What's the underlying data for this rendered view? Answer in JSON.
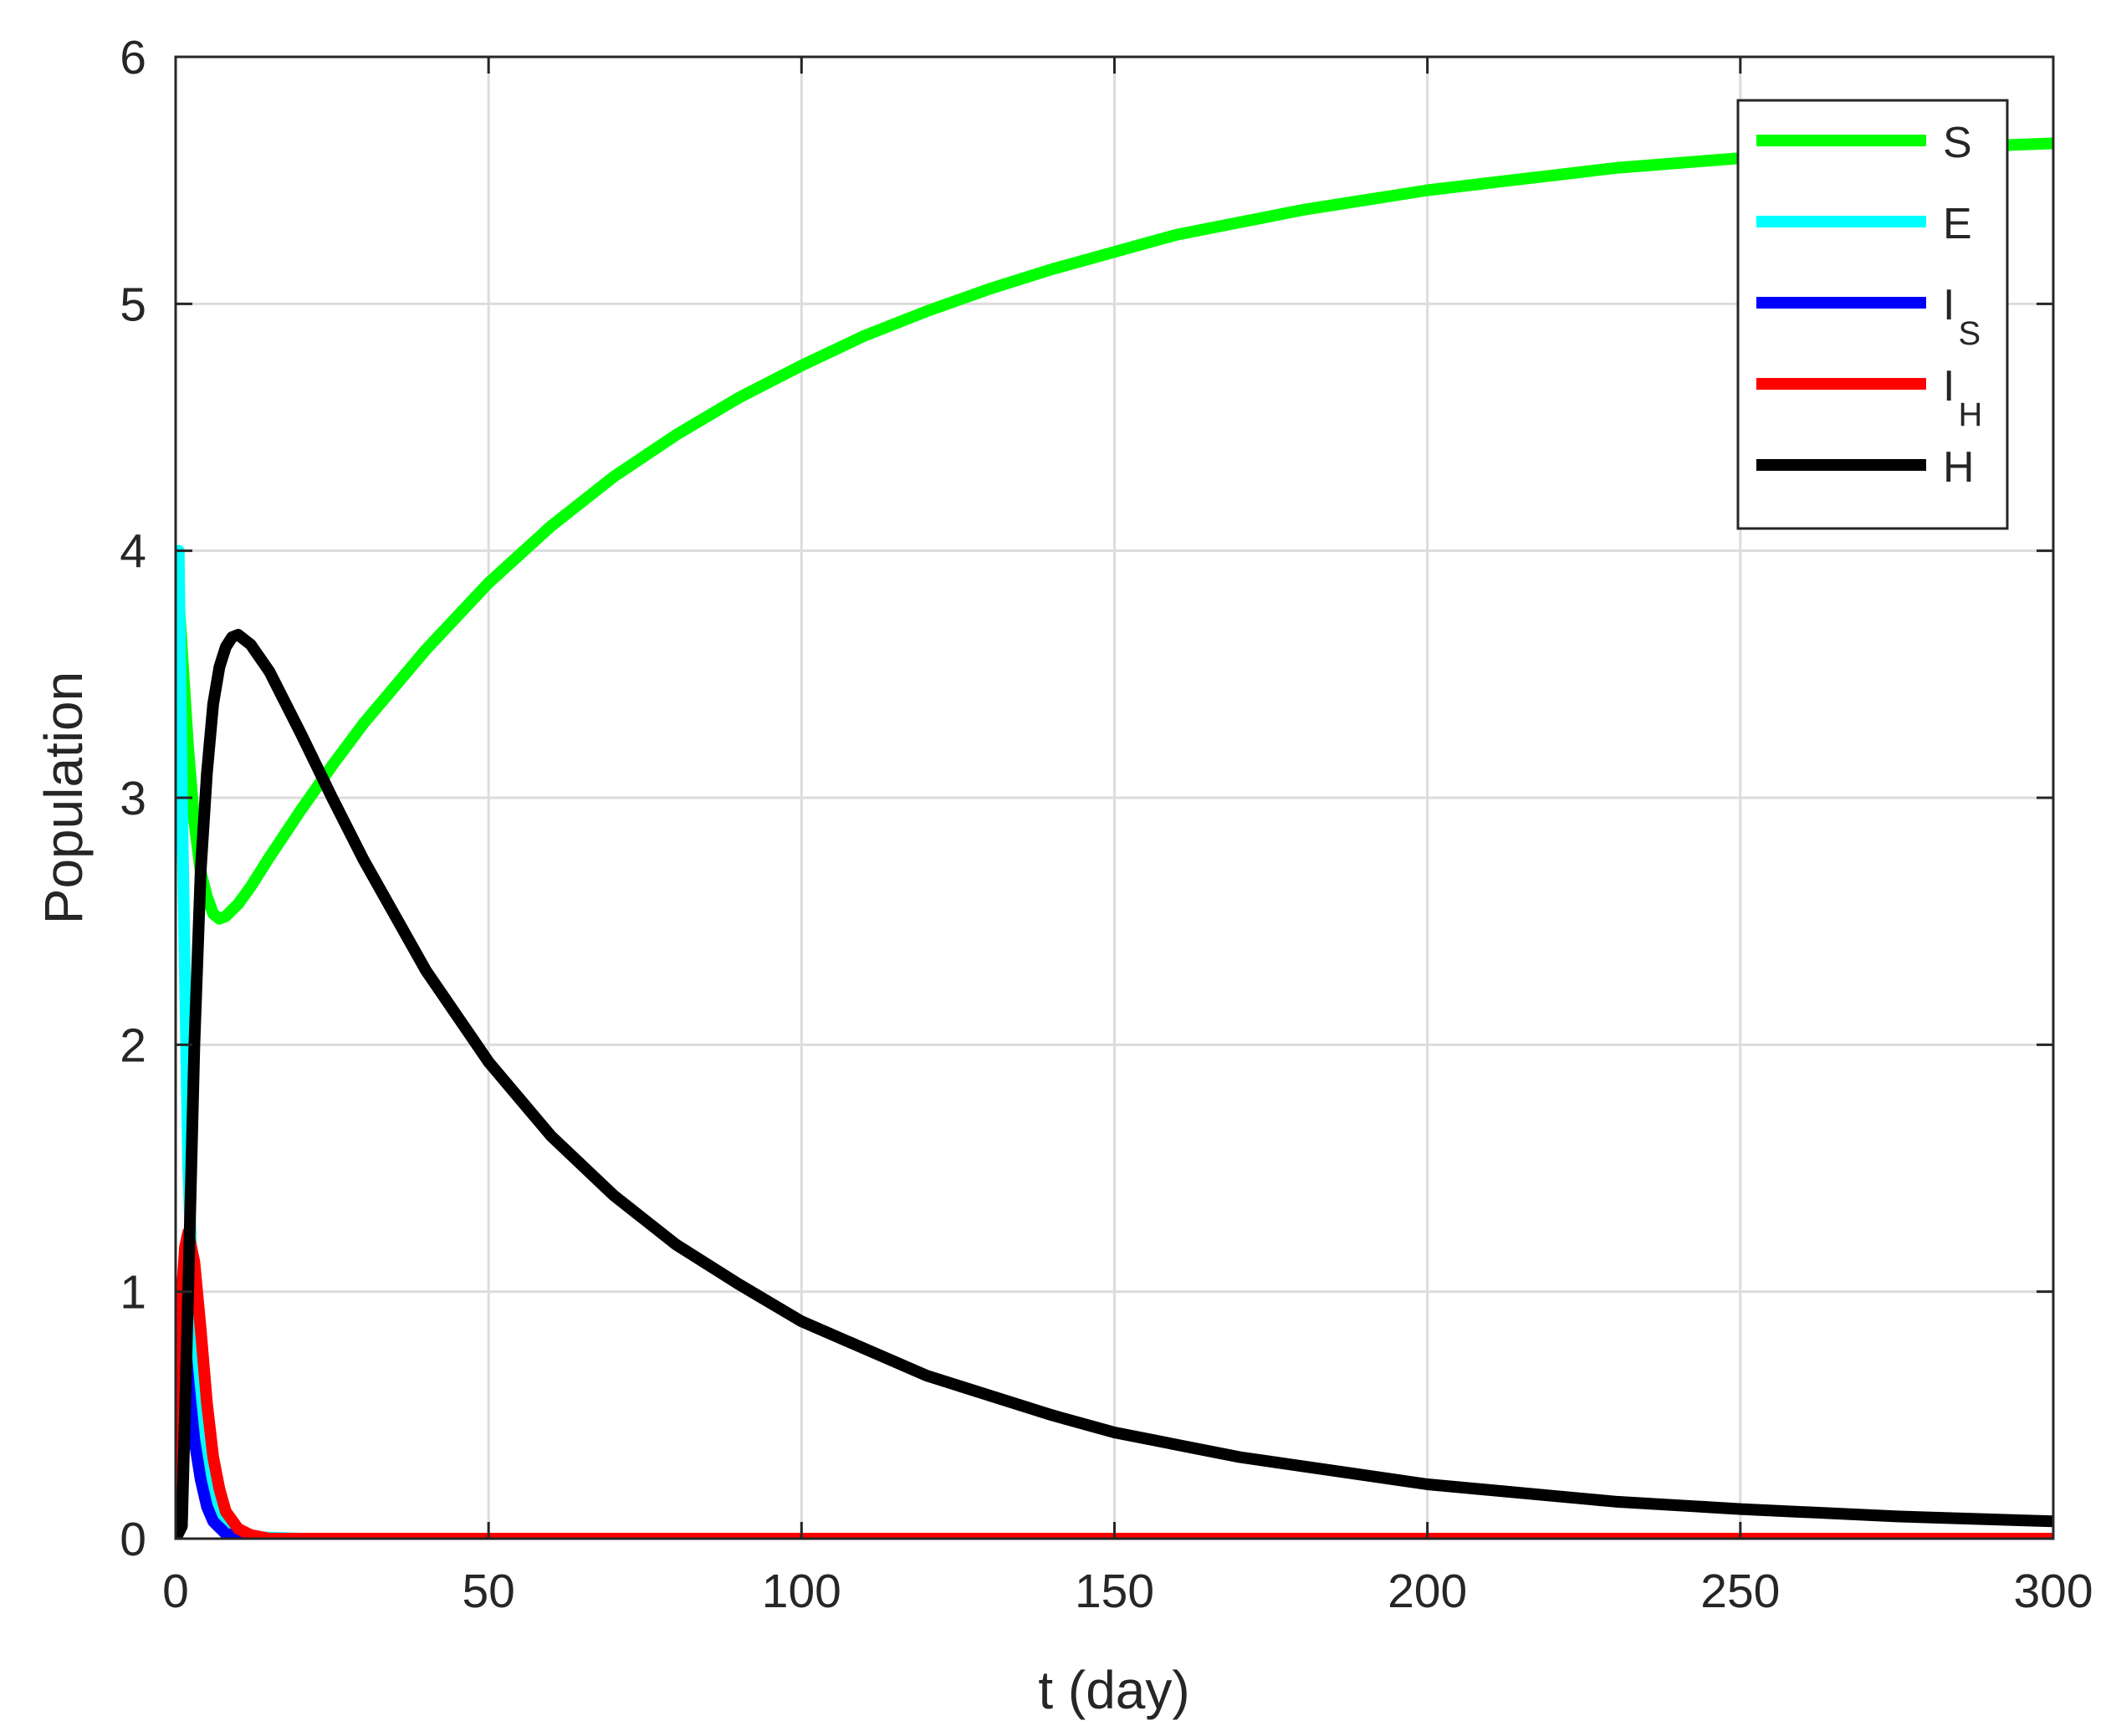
{
  "chart_data": {
    "type": "line",
    "xlabel": "t (day)",
    "ylabel": "Population",
    "xlim": [
      0,
      300
    ],
    "ylim": [
      0,
      6
    ],
    "xticks": [
      0,
      50,
      100,
      150,
      200,
      250,
      300
    ],
    "yticks": [
      0,
      1,
      2,
      3,
      4,
      5,
      6
    ],
    "grid": true,
    "legend_position": "top-right",
    "series": [
      {
        "name": "S",
        "color": "#00ff00",
        "points": [
          [
            0,
            4.0
          ],
          [
            1,
            3.6
          ],
          [
            2,
            3.2
          ],
          [
            3,
            2.9
          ],
          [
            4,
            2.7
          ],
          [
            5,
            2.6
          ],
          [
            6,
            2.53
          ],
          [
            7,
            2.51
          ],
          [
            8,
            2.52
          ],
          [
            10,
            2.57
          ],
          [
            12,
            2.64
          ],
          [
            15,
            2.76
          ],
          [
            20,
            2.95
          ],
          [
            25,
            3.13
          ],
          [
            30,
            3.3
          ],
          [
            40,
            3.6
          ],
          [
            50,
            3.87
          ],
          [
            60,
            4.1
          ],
          [
            70,
            4.3
          ],
          [
            80,
            4.47
          ],
          [
            90,
            4.62
          ],
          [
            100,
            4.75
          ],
          [
            110,
            4.87
          ],
          [
            120,
            4.97
          ],
          [
            130,
            5.06
          ],
          [
            140,
            5.14
          ],
          [
            150,
            5.21
          ],
          [
            160,
            5.28
          ],
          [
            170,
            5.33
          ],
          [
            180,
            5.38
          ],
          [
            190,
            5.42
          ],
          [
            200,
            5.46
          ],
          [
            210,
            5.49
          ],
          [
            220,
            5.52
          ],
          [
            230,
            5.55
          ],
          [
            240,
            5.57
          ],
          [
            250,
            5.59
          ],
          [
            260,
            5.61
          ],
          [
            270,
            5.62
          ],
          [
            280,
            5.63
          ],
          [
            290,
            5.64
          ],
          [
            300,
            5.65
          ]
        ]
      },
      {
        "name": "E",
        "color": "#00ffff",
        "points": [
          [
            0,
            3.97
          ],
          [
            0.5,
            4.0
          ],
          [
            1,
            3.0
          ],
          [
            2,
            1.5
          ],
          [
            3,
            0.8
          ],
          [
            4,
            0.45
          ],
          [
            5,
            0.25
          ],
          [
            6,
            0.13
          ],
          [
            8,
            0.05
          ],
          [
            10,
            0.02
          ],
          [
            14,
            0.005
          ],
          [
            20,
            0.0
          ],
          [
            300,
            0.0
          ]
        ]
      },
      {
        "name": "I_S",
        "subscript": "S",
        "color": "#0000ff",
        "points": [
          [
            0,
            0.0
          ],
          [
            0.5,
            0.5
          ],
          [
            1,
            0.75
          ],
          [
            1.5,
            0.8
          ],
          [
            2,
            0.65
          ],
          [
            3,
            0.4
          ],
          [
            4,
            0.24
          ],
          [
            5,
            0.13
          ],
          [
            6,
            0.07
          ],
          [
            8,
            0.02
          ],
          [
            10,
            0.01
          ],
          [
            14,
            0.0
          ],
          [
            300,
            0.0
          ]
        ]
      },
      {
        "name": "I_H",
        "subscript": "H",
        "color": "#ff0000",
        "points": [
          [
            0,
            0.0
          ],
          [
            0.5,
            0.6
          ],
          [
            1,
            1.0
          ],
          [
            1.5,
            1.18
          ],
          [
            2,
            1.24
          ],
          [
            3,
            1.12
          ],
          [
            4,
            0.85
          ],
          [
            5,
            0.55
          ],
          [
            6,
            0.33
          ],
          [
            7,
            0.2
          ],
          [
            8,
            0.11
          ],
          [
            10,
            0.04
          ],
          [
            12,
            0.015
          ],
          [
            15,
            0.0
          ],
          [
            300,
            0.0
          ]
        ]
      },
      {
        "name": "H",
        "color": "#000000",
        "points": [
          [
            0,
            0.0
          ],
          [
            1,
            0.05
          ],
          [
            2,
            1.0
          ],
          [
            3,
            2.0
          ],
          [
            4,
            2.7
          ],
          [
            5,
            3.1
          ],
          [
            6,
            3.38
          ],
          [
            7,
            3.53
          ],
          [
            8,
            3.61
          ],
          [
            9,
            3.65
          ],
          [
            10,
            3.66
          ],
          [
            12,
            3.62
          ],
          [
            15,
            3.51
          ],
          [
            20,
            3.26
          ],
          [
            25,
            3.0
          ],
          [
            30,
            2.75
          ],
          [
            40,
            2.3
          ],
          [
            50,
            1.93
          ],
          [
            60,
            1.63
          ],
          [
            70,
            1.39
          ],
          [
            80,
            1.19
          ],
          [
            90,
            1.03
          ],
          [
            100,
            0.88
          ],
          [
            120,
            0.66
          ],
          [
            140,
            0.5
          ],
          [
            150,
            0.43
          ],
          [
            170,
            0.33
          ],
          [
            200,
            0.22
          ],
          [
            230,
            0.15
          ],
          [
            250,
            0.12
          ],
          [
            275,
            0.09
          ],
          [
            300,
            0.07
          ]
        ]
      }
    ]
  }
}
